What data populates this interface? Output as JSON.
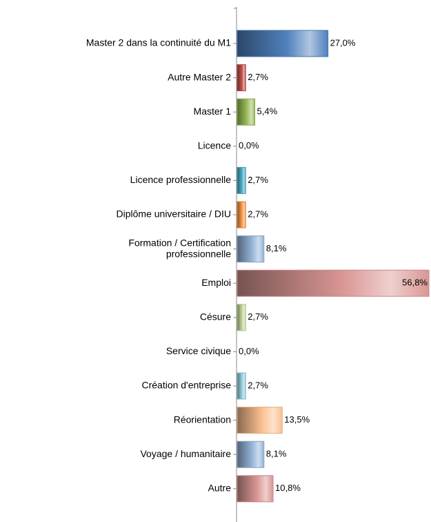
{
  "chart_data": {
    "type": "bar",
    "orientation": "horizontal",
    "categories": [
      "Master 2 dans la continuité du M1",
      "Autre Master 2",
      "Master 1",
      "Licence",
      "Licence professionnelle",
      "Diplôme universitaire / DIU",
      "Formation / Certification professionnelle",
      "Emploi",
      "Césure",
      "Service civique",
      "Création d'entreprise",
      "Réorientation",
      "Voyage / humanitaire",
      "Autre"
    ],
    "values": [
      27.0,
      2.7,
      5.4,
      0.0,
      2.7,
      2.7,
      8.1,
      56.8,
      2.7,
      0.0,
      2.7,
      13.5,
      8.1,
      10.8
    ],
    "value_labels": [
      "27,0%",
      "2,7%",
      "5,4%",
      "0,0%",
      "2,7%",
      "2,7%",
      "8,1%",
      "56,8%",
      "2,7%",
      "0,0%",
      "2,7%",
      "13,5%",
      "8,1%",
      "10,8%"
    ],
    "colors": [
      "#4f81bd",
      "#c0504d",
      "#9bbb59",
      "#8064a2",
      "#4bacc6",
      "#f79646",
      "#95b3d7",
      "#d99694",
      "#c3d69b",
      "#b3a2c7",
      "#93cddd",
      "#fac090",
      "#95b3d7",
      "#d99694"
    ]
  }
}
